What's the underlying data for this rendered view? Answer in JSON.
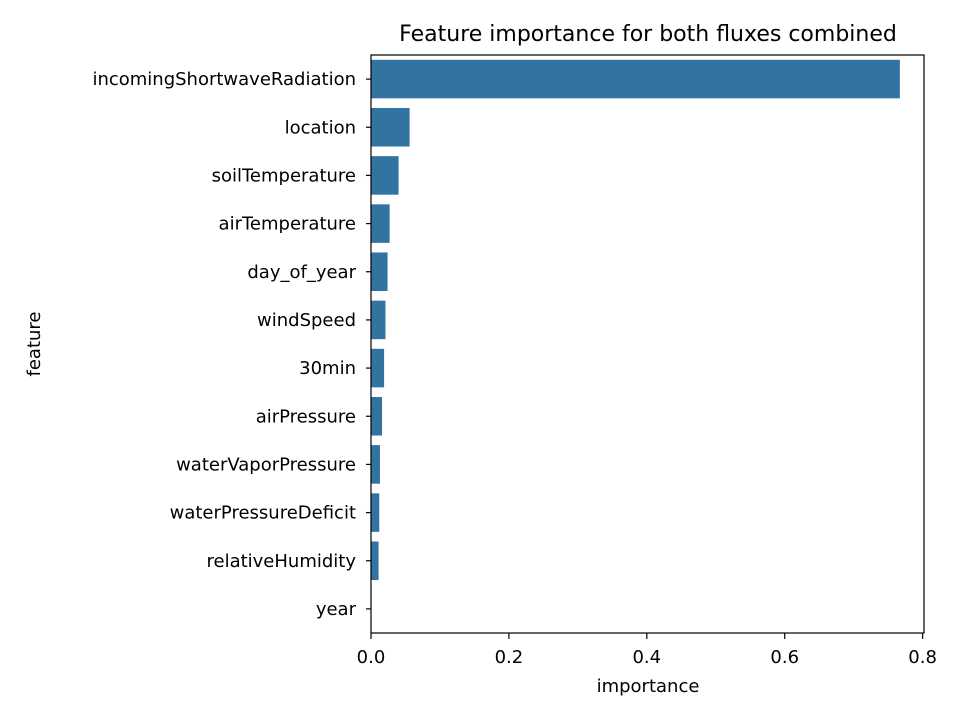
{
  "chart_data": {
    "type": "bar",
    "orientation": "horizontal",
    "title": "Feature importance for both fluxes combined",
    "xlabel": "importance",
    "ylabel": "feature",
    "categories": [
      "incomingShortwaveRadiation",
      "location",
      "soilTemperature",
      "airTemperature",
      "day_of_year",
      "windSpeed",
      "30min",
      "airPressure",
      "waterVaporPressure",
      "waterPressureDeficit",
      "relativeHumidity",
      "year"
    ],
    "values": [
      0.767,
      0.056,
      0.04,
      0.027,
      0.024,
      0.021,
      0.019,
      0.016,
      0.013,
      0.012,
      0.011,
      0.0
    ],
    "xlim": [
      0,
      0.802
    ],
    "xticks": [
      0.0,
      0.2,
      0.4,
      0.6,
      0.8
    ],
    "xtick_labels": [
      "0.0",
      "0.2",
      "0.4",
      "0.6",
      "0.8"
    ],
    "grid": false,
    "bar_color": "#3274a1"
  }
}
